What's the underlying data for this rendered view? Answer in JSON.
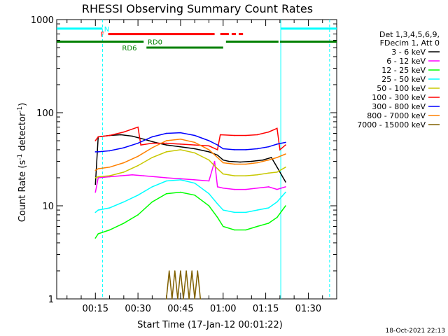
{
  "chart_data": {
    "type": "line",
    "title": "RHESSI Observing Summary Count Rates",
    "xlabel": "Start Time (17-Jan-12 00:01:22)",
    "ylabel_main": "Count Rate (s",
    "ylabel_sup1": "-1",
    "ylabel_mid": " detector",
    "ylabel_sup2": "-1",
    "ylabel_end": ")",
    "yscale": "log",
    "ylim": [
      1,
      1000
    ],
    "xlim_minutes": [
      1.37,
      100
    ],
    "y_ticks": [
      {
        "v": 1,
        "label": "1"
      },
      {
        "v": 10,
        "label": "10"
      },
      {
        "v": 100,
        "label": "100"
      },
      {
        "v": 1000,
        "label": "1000"
      }
    ],
    "x_ticks": [
      {
        "v": 15,
        "label": "00:15"
      },
      {
        "v": 30,
        "label": "00:30"
      },
      {
        "v": 45,
        "label": "00:45"
      },
      {
        "v": 60,
        "label": "01:00"
      },
      {
        "v": 75,
        "label": "01:15"
      },
      {
        "v": 90,
        "label": "01:30"
      }
    ],
    "legend_header": [
      "Det 1,3,4,5,6,9,",
      "FDecim 1, Att 0"
    ],
    "series": [
      {
        "name": "3 - 6 keV",
        "color": "#000000",
        "points": [
          [
            15,
            17
          ],
          [
            16,
            55
          ],
          [
            20,
            57
          ],
          [
            24,
            58
          ],
          [
            28,
            56
          ],
          [
            32,
            52
          ],
          [
            36,
            48
          ],
          [
            40,
            45
          ],
          [
            45,
            43
          ],
          [
            50,
            41
          ],
          [
            55,
            38
          ],
          [
            58,
            35
          ],
          [
            60,
            31
          ],
          [
            62,
            30
          ],
          [
            66,
            29.5
          ],
          [
            70,
            30
          ],
          [
            74,
            31
          ],
          [
            77,
            33
          ],
          [
            79,
            26
          ],
          [
            82,
            18
          ]
        ]
      },
      {
        "name": "6 - 12 keV",
        "color": "#ff00ff",
        "points": [
          [
            15,
            14
          ],
          [
            16,
            20
          ],
          [
            20,
            20.5
          ],
          [
            24,
            21
          ],
          [
            28,
            21.5
          ],
          [
            32,
            21
          ],
          [
            36,
            20.5
          ],
          [
            40,
            20
          ],
          [
            45,
            19.5
          ],
          [
            50,
            19
          ],
          [
            55,
            18.5
          ],
          [
            57,
            30
          ],
          [
            58,
            16
          ],
          [
            60,
            15.5
          ],
          [
            64,
            15
          ],
          [
            68,
            15
          ],
          [
            72,
            15.5
          ],
          [
            76,
            16
          ],
          [
            79,
            15
          ],
          [
            82,
            16
          ]
        ]
      },
      {
        "name": "12 - 25 keV",
        "color": "#00ff00",
        "points": [
          [
            15,
            4.5
          ],
          [
            16,
            5
          ],
          [
            20,
            5.5
          ],
          [
            25,
            6.5
          ],
          [
            30,
            8
          ],
          [
            35,
            11
          ],
          [
            40,
            13.5
          ],
          [
            45,
            14
          ],
          [
            50,
            13
          ],
          [
            55,
            10
          ],
          [
            58,
            7.5
          ],
          [
            60,
            6
          ],
          [
            64,
            5.5
          ],
          [
            68,
            5.5
          ],
          [
            72,
            6
          ],
          [
            76,
            6.5
          ],
          [
            79,
            7.5
          ],
          [
            82,
            10
          ]
        ]
      },
      {
        "name": "25 - 50 keV",
        "color": "#00ffff",
        "points": [
          [
            15,
            8.5
          ],
          [
            16,
            9
          ],
          [
            20,
            9.5
          ],
          [
            25,
            11
          ],
          [
            30,
            13
          ],
          [
            35,
            16
          ],
          [
            40,
            18.5
          ],
          [
            45,
            19
          ],
          [
            50,
            17.5
          ],
          [
            55,
            13.5
          ],
          [
            58,
            10.5
          ],
          [
            60,
            9
          ],
          [
            64,
            8.5
          ],
          [
            68,
            8.5
          ],
          [
            72,
            9
          ],
          [
            76,
            9.5
          ],
          [
            79,
            11
          ],
          [
            82,
            14
          ]
        ]
      },
      {
        "name": "50 - 100 keV",
        "color": "#c8c800",
        "points": [
          [
            15,
            20
          ],
          [
            16,
            20.5
          ],
          [
            20,
            21
          ],
          [
            25,
            23
          ],
          [
            30,
            27
          ],
          [
            35,
            33
          ],
          [
            40,
            38
          ],
          [
            45,
            40
          ],
          [
            50,
            37
          ],
          [
            55,
            31
          ],
          [
            58,
            25
          ],
          [
            60,
            22
          ],
          [
            64,
            21
          ],
          [
            68,
            21
          ],
          [
            72,
            21.5
          ],
          [
            76,
            22.5
          ],
          [
            79,
            23
          ],
          [
            82,
            26
          ]
        ]
      },
      {
        "name": "100 - 300 keV",
        "color": "#ff0000",
        "points": [
          [
            15,
            50
          ],
          [
            16,
            55
          ],
          [
            20,
            57
          ],
          [
            25,
            62
          ],
          [
            30,
            70
          ],
          [
            31,
            45
          ],
          [
            35,
            47
          ],
          [
            40,
            47
          ],
          [
            45,
            46
          ],
          [
            50,
            45
          ],
          [
            55,
            44
          ],
          [
            58,
            40
          ],
          [
            59,
            58
          ],
          [
            64,
            57
          ],
          [
            68,
            57
          ],
          [
            72,
            58
          ],
          [
            76,
            62
          ],
          [
            79,
            68
          ],
          [
            80,
            40
          ],
          [
            82,
            45
          ]
        ]
      },
      {
        "name": "300 - 800 keV",
        "color": "#0000ff",
        "points": [
          [
            15,
            38
          ],
          [
            16,
            38
          ],
          [
            20,
            39
          ],
          [
            25,
            42
          ],
          [
            30,
            47
          ],
          [
            35,
            55
          ],
          [
            40,
            60
          ],
          [
            45,
            61
          ],
          [
            50,
            57
          ],
          [
            55,
            50
          ],
          [
            58,
            45
          ],
          [
            60,
            41
          ],
          [
            64,
            40
          ],
          [
            68,
            40
          ],
          [
            72,
            41
          ],
          [
            76,
            43
          ],
          [
            79,
            46
          ],
          [
            82,
            48
          ]
        ]
      },
      {
        "name": "800 - 7000 keV",
        "color": "#ff8000",
        "points": [
          [
            15,
            24
          ],
          [
            16,
            25
          ],
          [
            20,
            26
          ],
          [
            25,
            29
          ],
          [
            30,
            34
          ],
          [
            35,
            42
          ],
          [
            40,
            50
          ],
          [
            45,
            52
          ],
          [
            50,
            48
          ],
          [
            55,
            40
          ],
          [
            58,
            33
          ],
          [
            60,
            29
          ],
          [
            64,
            28
          ],
          [
            68,
            28
          ],
          [
            72,
            29
          ],
          [
            76,
            31
          ],
          [
            79,
            33
          ],
          [
            82,
            36
          ]
        ]
      },
      {
        "name": "7000 - 15000 keV",
        "color": "#806000",
        "points": [
          [
            40,
            1
          ],
          [
            41,
            2
          ],
          [
            42,
            1
          ],
          [
            43,
            2
          ],
          [
            44,
            1
          ],
          [
            45,
            2
          ],
          [
            46,
            1
          ],
          [
            47,
            2
          ],
          [
            48,
            1
          ],
          [
            49,
            2
          ],
          [
            50,
            1
          ],
          [
            51,
            2
          ],
          [
            52,
            1
          ]
        ]
      }
    ],
    "flags": [
      {
        "label": "N",
        "label_at": 19,
        "color": "#00ffff",
        "segments": [
          [
            1.4,
            17.5
          ],
          [
            80.3,
            100
          ]
        ],
        "y": 800
      },
      {
        "label": "F",
        "label_at": 17.5,
        "color": "#ff0000",
        "segments": [
          [
            19.5,
            57
          ],
          [
            59,
            62
          ],
          [
            63,
            64.5
          ],
          [
            65.5,
            67
          ]
        ],
        "y": 700
      },
      {
        "label": "RD0",
        "label_at": 36,
        "color": "#008000",
        "segments": [
          [
            1.4,
            32
          ],
          [
            61,
            79.5
          ],
          [
            80,
            100
          ]
        ],
        "y": 580
      },
      {
        "label": "RD6",
        "label_at": 27,
        "color": "#008000",
        "segments": [
          [
            33,
            60
          ]
        ],
        "y": 500
      }
    ],
    "vlines": [
      {
        "v": 17.5,
        "color": "#00ffff",
        "style": "dashed"
      },
      {
        "v": 80.3,
        "color": "#00ffff",
        "style": "solid"
      },
      {
        "v": 97.5,
        "color": "#00ffff",
        "style": "dashed"
      }
    ],
    "footer": "18-Oct-2021 22:13"
  }
}
